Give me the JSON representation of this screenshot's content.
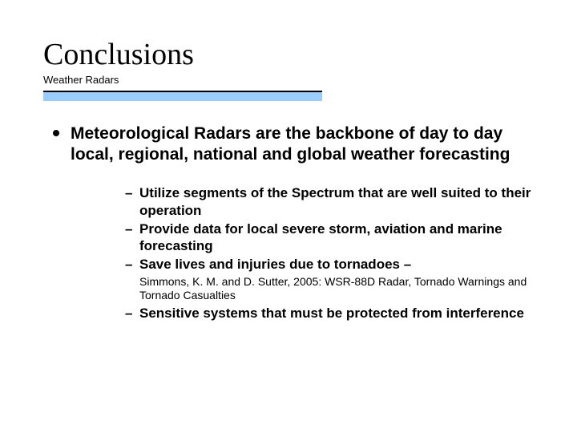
{
  "slide": {
    "title": "Conclusions",
    "subtitle": "Weather Radars",
    "divider": {
      "black_width": 348,
      "black_height": 2,
      "blue_width": 348,
      "blue_height": 11,
      "blue_color": "#99ccff",
      "black_color": "#000000"
    },
    "main_bullet": "Meteorological Radars are the backbone of day to day local, regional, national and global weather forecasting",
    "sub_bullets": {
      "b1": "Utilize  segments of the Spectrum that are well suited to their operation",
      "b2": "Provide data for local severe storm, aviation and marine forecasting",
      "b3": "Save lives and injuries due to tornadoes –",
      "citation": "Simmons, K. M. and D. Sutter, 2005: WSR-88D Radar, Tornado Warnings and Tornado Casualties",
      "b4": "Sensitive systems that must be protected from interference"
    },
    "typography": {
      "title_font": "Times New Roman",
      "title_fontsize": 38,
      "subtitle_fontsize": 13,
      "body_font": "Arial",
      "main_bullet_fontsize": 21,
      "sub_bullet_fontsize": 17,
      "citation_fontsize": 14,
      "text_color": "#000000",
      "background_color": "#ffffff"
    }
  }
}
